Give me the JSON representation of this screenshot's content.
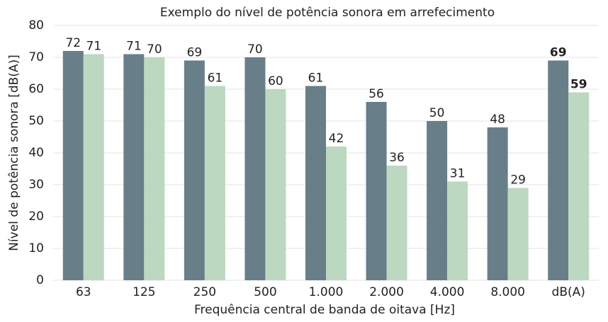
{
  "chart_data": {
    "type": "bar",
    "title": "Exemplo do nível de potência sonora em arrefecimento",
    "x_label": "Frequência central de banda de oitava [Hz]",
    "y_label": "Nível de potência sonora [dB(A)]",
    "categories": [
      "63",
      "125",
      "250",
      "500",
      "1.000",
      "2.000",
      "4.000",
      "8.000",
      "dB(A)"
    ],
    "series": [
      {
        "color": "#687f89",
        "values": [
          72,
          71,
          69,
          70,
          61,
          56,
          50,
          48,
          69
        ]
      },
      {
        "color": "#bcd8c1",
        "values": [
          71,
          70,
          61,
          60,
          42,
          36,
          31,
          29,
          59
        ]
      }
    ],
    "ylim": [
      0,
      80
    ],
    "yticks": [
      0,
      10,
      20,
      30,
      40,
      50,
      60,
      70,
      80
    ],
    "grid": true
  }
}
